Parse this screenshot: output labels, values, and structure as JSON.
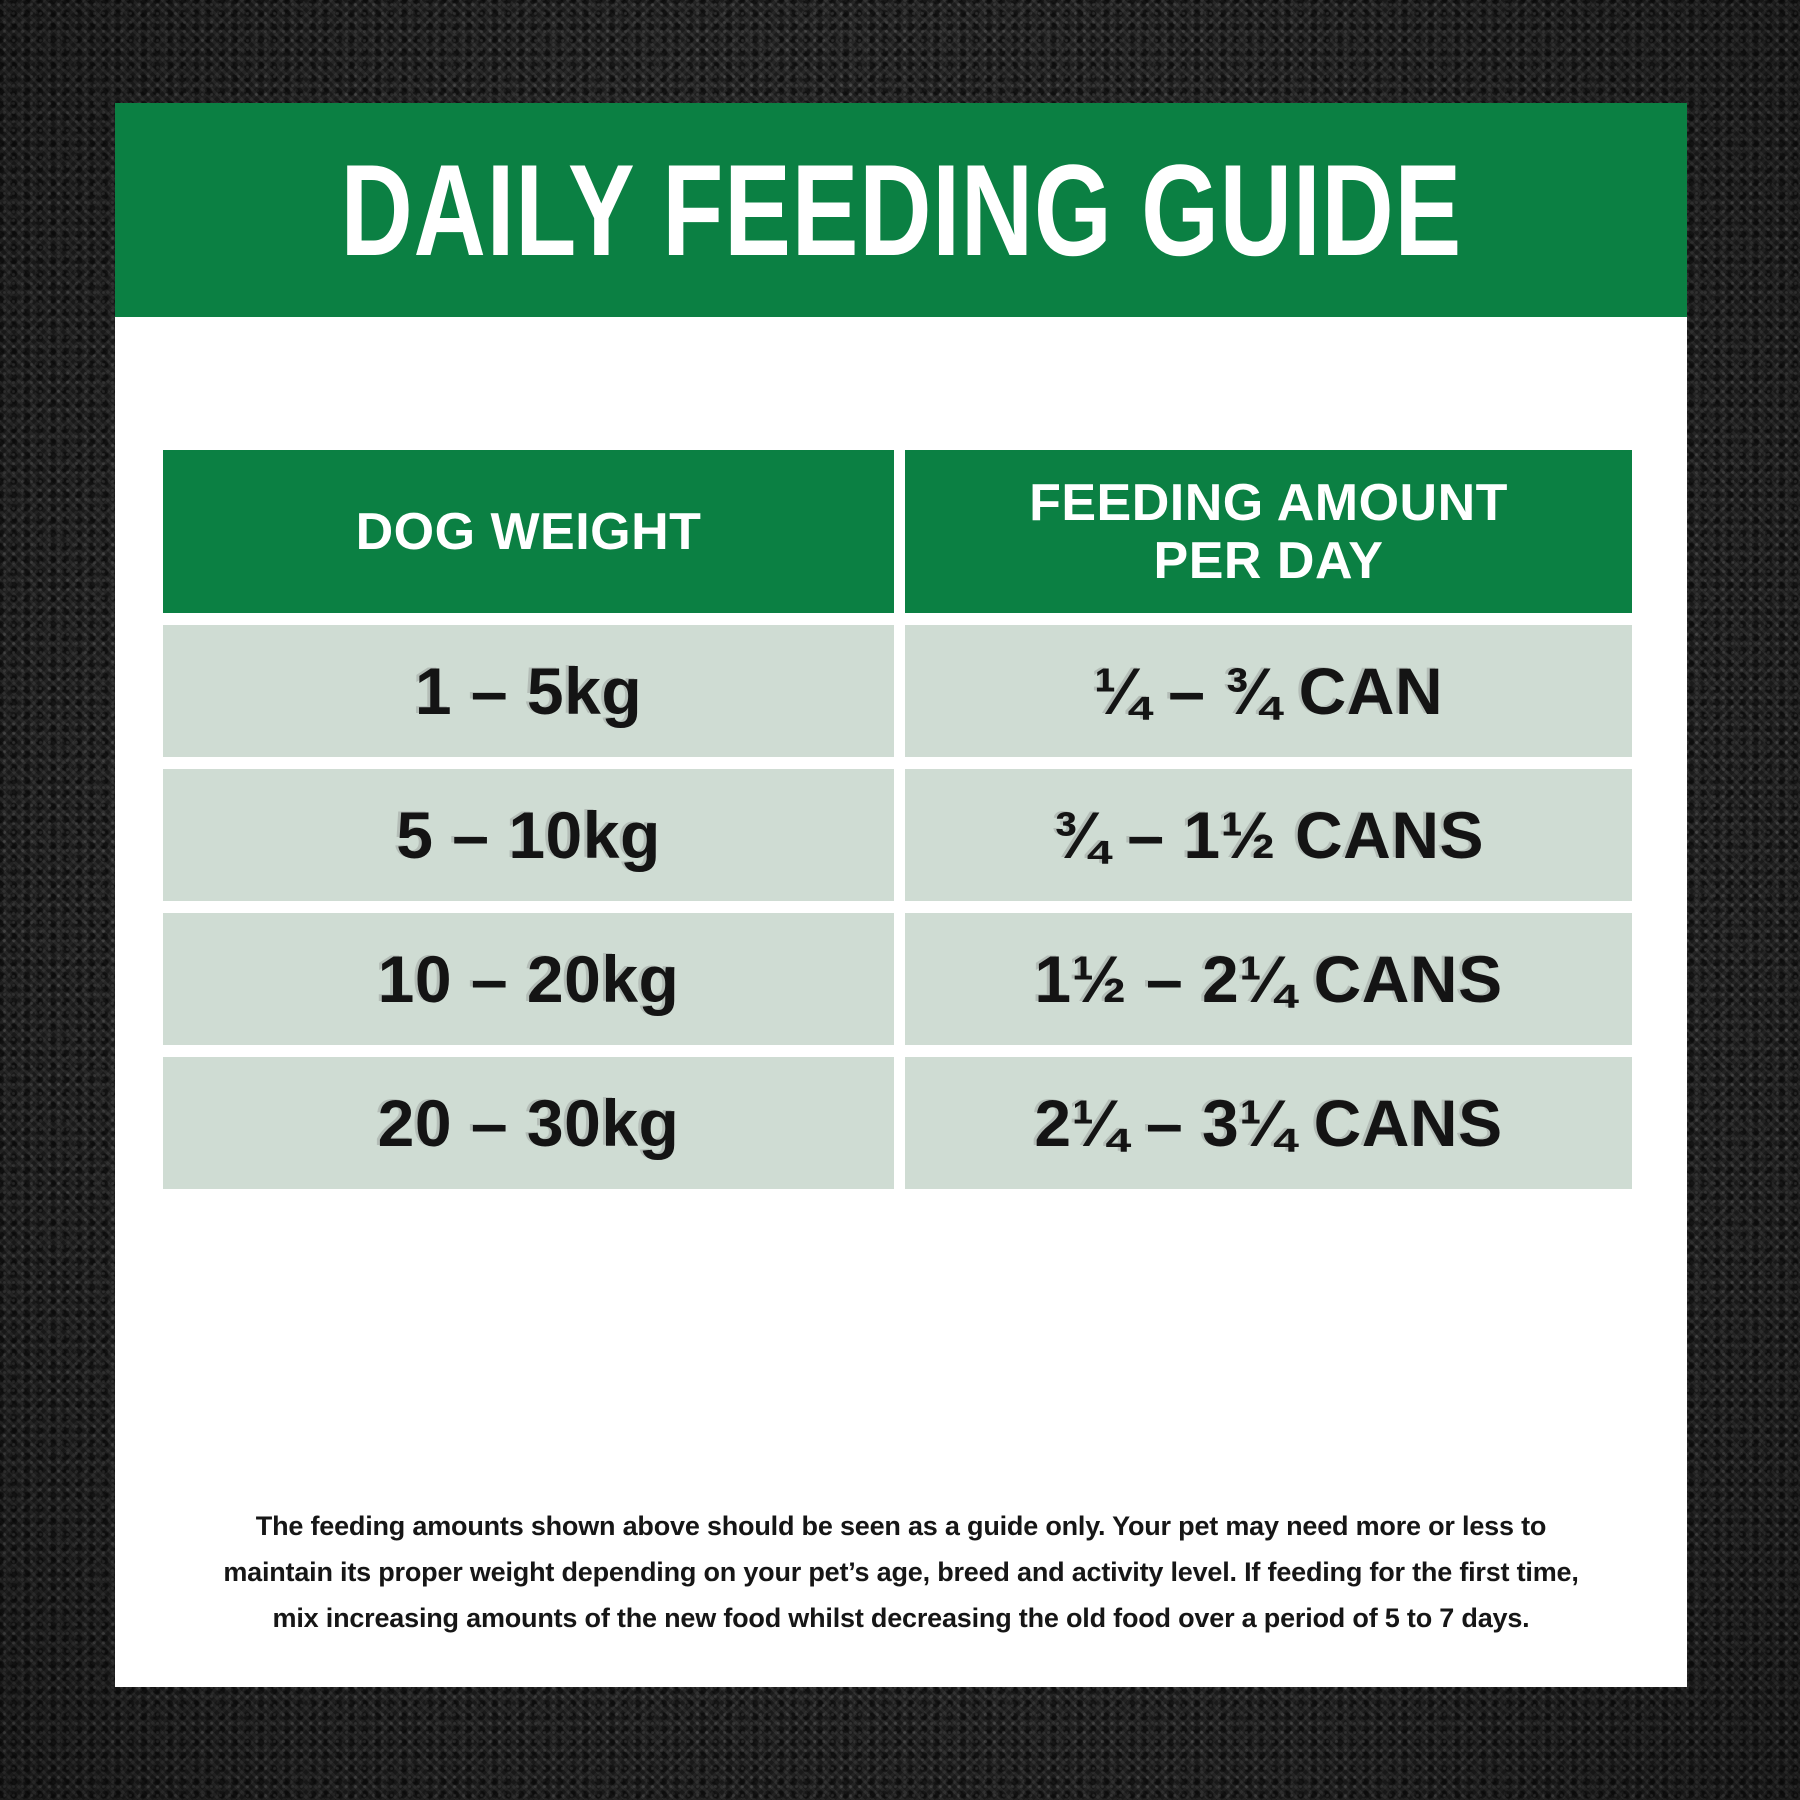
{
  "title": "DAILY FEEDING GUIDE",
  "colors": {
    "banner_green": "#0B8043",
    "row_background": "#CFDCD3",
    "card_background": "#FFFFFF",
    "fabric_background": "#242424",
    "header_text": "#FFFFFF",
    "row_text": "#141414"
  },
  "table": {
    "headers": [
      "DOG WEIGHT",
      "FEEDING AMOUNT\nPER DAY"
    ],
    "rows": [
      {
        "weight": "1 – 5kg",
        "amount": "¼ – ¾ CAN"
      },
      {
        "weight": "5 – 10kg",
        "amount": "¾ – 1½ CANS"
      },
      {
        "weight": "10 – 20kg",
        "amount": "1½ – 2¼ CANS"
      },
      {
        "weight": "20 – 30kg",
        "amount": "2¼ – 3¼ CANS"
      }
    ]
  },
  "disclaimer": {
    "lines": [
      "The feeding amounts shown above should be seen as a guide only. Your pet may need more or less to",
      "maintain its proper weight depending on your pet’s age, breed and activity level. If feeding for the first time,",
      "mix increasing amounts of the new food whilst decreasing the old food over a period of 5 to 7 days."
    ]
  }
}
